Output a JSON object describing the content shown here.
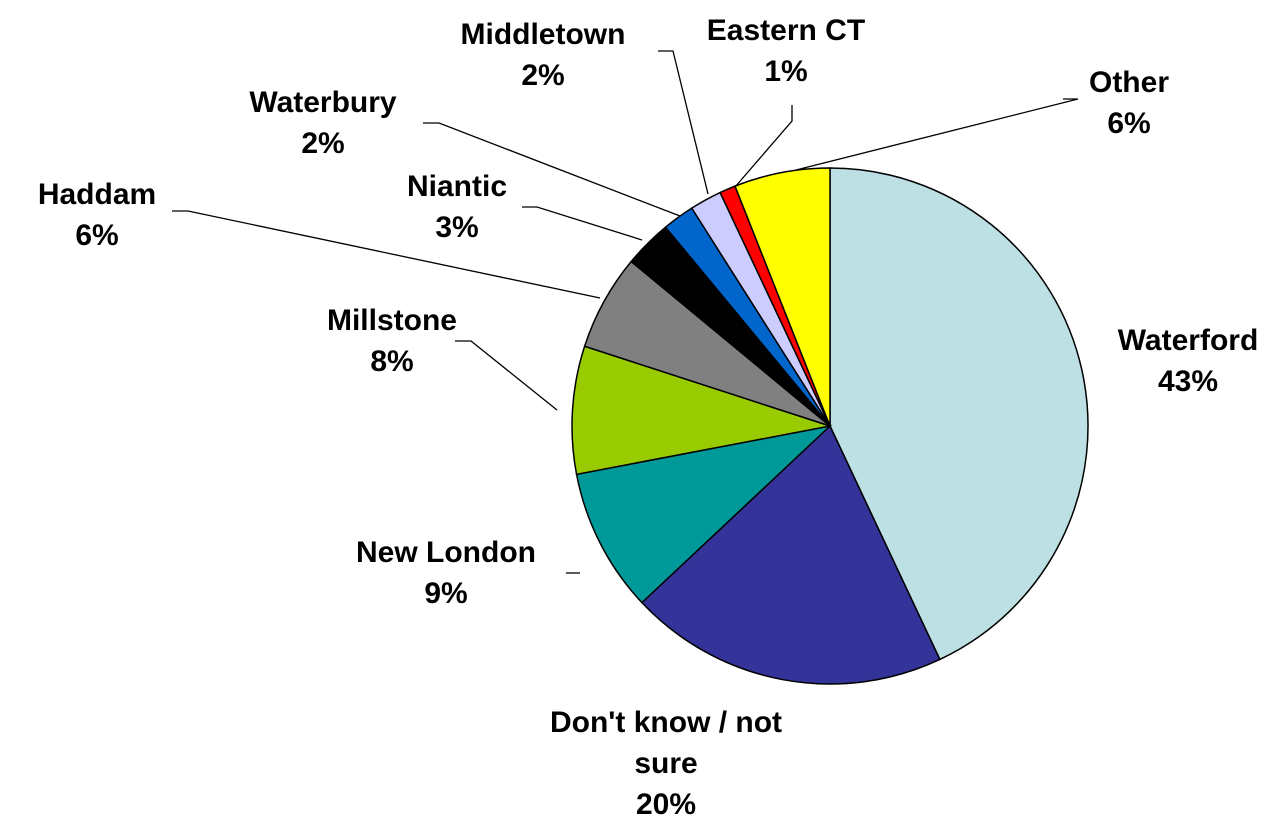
{
  "chart_data": {
    "type": "pie",
    "title": "",
    "categories": [
      "Waterford",
      "Don't know / not sure",
      "New London",
      "Millstone",
      "Haddam",
      "Niantic",
      "Waterbury",
      "Middletown",
      "Eastern CT",
      "Other"
    ],
    "values": [
      43,
      20,
      9,
      8,
      6,
      3,
      2,
      2,
      1,
      6
    ],
    "labels": [
      "43%",
      "20%",
      "9%",
      "8%",
      "6%",
      "3%",
      "2%",
      "2%",
      "1%",
      "6%"
    ],
    "colors": [
      "#BCE0E4",
      "#333399",
      "#009999",
      "#99CC00",
      "#808080",
      "#000000",
      "#0066CC",
      "#CCCCFF",
      "#FF0000",
      "#FFFF00"
    ],
    "start_angle_deg": 0,
    "direction": "clockwise",
    "legend": "none"
  }
}
